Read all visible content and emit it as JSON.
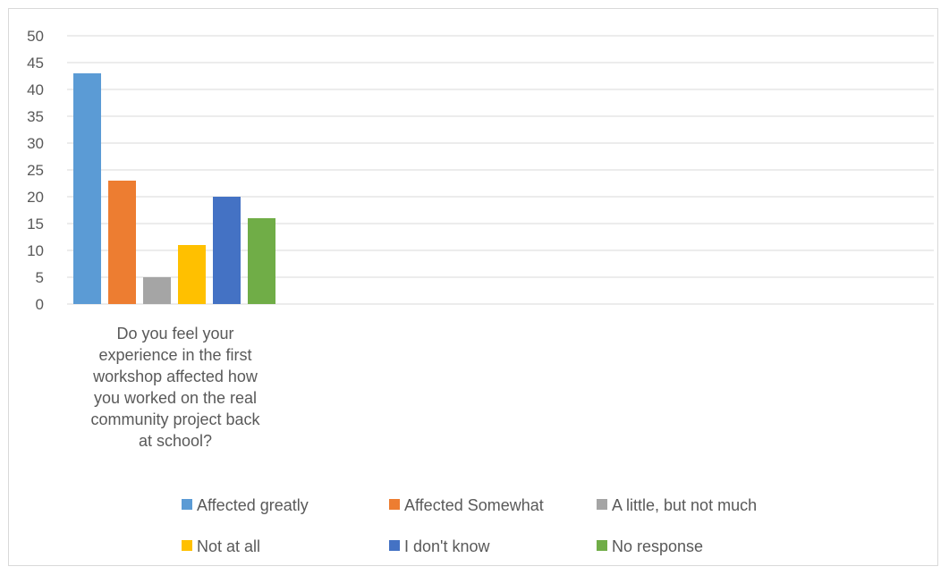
{
  "chart_data": {
    "type": "bar",
    "categories": [
      "Do you feel your experience in the first workshop affected how you worked on the real community project back at school?"
    ],
    "category_label_lines": [
      "Do you feel your",
      "experience in the first",
      "workshop affected how",
      "you worked on the real",
      "community project back",
      "at school?"
    ],
    "series": [
      {
        "name": "Affected greatly",
        "values": [
          43
        ],
        "color": "#5B9BD5"
      },
      {
        "name": "Affected Somewhat",
        "values": [
          23
        ],
        "color": "#ED7D31"
      },
      {
        "name": "A little, but not much",
        "values": [
          5
        ],
        "color": "#A5A5A5"
      },
      {
        "name": "Not at all",
        "values": [
          11
        ],
        "color": "#FFC000"
      },
      {
        "name": "I don't know",
        "values": [
          20
        ],
        "color": "#4472C4"
      },
      {
        "name": "No response",
        "values": [
          16
        ],
        "color": "#70AD47"
      }
    ],
    "yticks": [
      "0",
      "5",
      "10",
      "15",
      "20",
      "25",
      "30",
      "35",
      "40",
      "45",
      "50"
    ],
    "ylim": [
      0,
      50
    ],
    "grid": true,
    "legend_position": "bottom",
    "title": "",
    "xlabel": "",
    "ylabel": ""
  }
}
